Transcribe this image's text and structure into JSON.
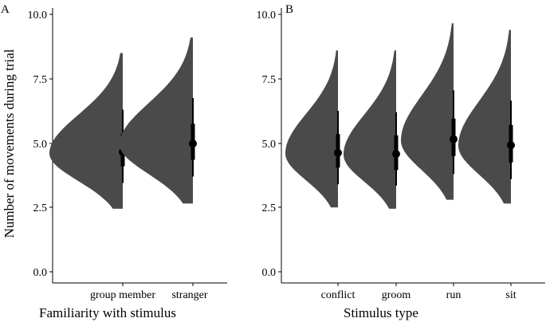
{
  "colors": {
    "distribution": "#4a4a4a",
    "interval": "#000000",
    "axis": "#000000"
  },
  "chart_data": [
    {
      "type": "halfeye",
      "panel_label": "A",
      "xlabel": "Familiarity with stimulus",
      "ylabel": "Number of movements during trial",
      "ylim": [
        0,
        10
      ],
      "yticks": [
        "0.0",
        "2.5",
        "5.0",
        "7.5",
        "10.0"
      ],
      "categories": [
        "group member",
        "stranger"
      ],
      "median": [
        4.65,
        4.98
      ],
      "interval_66": [
        [
          4.1,
          5.35
        ],
        [
          4.35,
          5.75
        ]
      ],
      "interval_95": [
        [
          3.45,
          6.3
        ],
        [
          3.7,
          6.75
        ]
      ],
      "density_range": [
        [
          2.45,
          8.5
        ],
        [
          2.65,
          9.1
        ]
      ],
      "density_mode": [
        4.6,
        4.95
      ],
      "grid": false
    },
    {
      "type": "halfeye",
      "panel_label": "B",
      "xlabel": "Stimulus type",
      "ylabel": "",
      "ylim": [
        0,
        10
      ],
      "yticks": [
        "0.0",
        "2.5",
        "5.0",
        "7.5",
        "10.0"
      ],
      "categories": [
        "conflict",
        "groom",
        "run",
        "sit"
      ],
      "median": [
        4.62,
        4.58,
        5.15,
        4.92
      ],
      "interval_66": [
        [
          4.05,
          5.35
        ],
        [
          3.95,
          5.3
        ],
        [
          4.5,
          5.95
        ],
        [
          4.25,
          5.7
        ]
      ],
      "interval_95": [
        [
          3.4,
          6.25
        ],
        [
          3.35,
          6.2
        ],
        [
          3.8,
          7.05
        ],
        [
          3.6,
          6.65
        ]
      ],
      "density_range": [
        [
          2.5,
          8.6
        ],
        [
          2.45,
          8.6
        ],
        [
          2.8,
          9.65
        ],
        [
          2.65,
          9.4
        ]
      ],
      "density_mode": [
        4.6,
        4.55,
        5.1,
        4.9
      ],
      "grid": false
    }
  ]
}
